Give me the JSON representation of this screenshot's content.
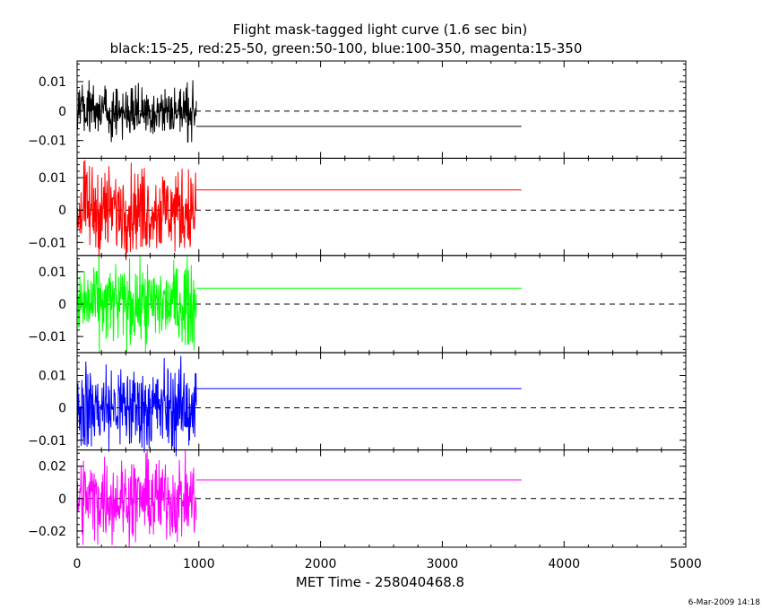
{
  "chart_data": {
    "type": "line",
    "title": "Flight mask-tagged light curve (1.6 sec bin)",
    "subtitle": "black:15-25, red:25-50, green:50-100, blue:100-350, magenta:15-350",
    "xlabel": "MET Time - 258040468.8",
    "xlim": [
      0,
      5000
    ],
    "x_ticks": [
      "0",
      "1000",
      "2000",
      "3000",
      "4000",
      "5000"
    ],
    "timestamp": "6-Mar-2009 14:18",
    "series": [
      {
        "color": "#000000",
        "ylim": [
          -0.016,
          0.017
        ],
        "y_tick_values": [
          -0.01,
          0,
          0.01
        ],
        "y_tick_labels": [
          "−0.01",
          "0",
          "0.01"
        ],
        "noise_x_range": [
          0,
          980
        ],
        "noise_amplitude": 0.0105,
        "mean_line": {
          "x": [
            980,
            3650
          ],
          "y": -0.0052
        }
      },
      {
        "color": "#ff0000",
        "ylim": [
          -0.014,
          0.016
        ],
        "y_tick_values": [
          -0.01,
          0,
          0.01
        ],
        "y_tick_labels": [
          "−0.01",
          "0",
          "0.01"
        ],
        "noise_x_range": [
          0,
          980
        ],
        "noise_amplitude": 0.0155,
        "mean_line": {
          "x": [
            980,
            3650
          ],
          "y": 0.0062
        }
      },
      {
        "color": "#00ff00",
        "ylim": [
          -0.015,
          0.015
        ],
        "y_tick_values": [
          -0.01,
          0,
          0.01
        ],
        "y_tick_labels": [
          "−0.01",
          "0",
          "0.01"
        ],
        "noise_x_range": [
          0,
          980
        ],
        "noise_amplitude": 0.0148,
        "mean_line": {
          "x": [
            980,
            3650
          ],
          "y": 0.0049
        }
      },
      {
        "color": "#0000ff",
        "ylim": [
          -0.013,
          0.017
        ],
        "y_tick_values": [
          -0.01,
          0,
          0.01
        ],
        "y_tick_labels": [
          "−0.01",
          "0",
          "0.01"
        ],
        "noise_x_range": [
          0,
          980
        ],
        "noise_amplitude": 0.016,
        "mean_line": {
          "x": [
            980,
            3650
          ],
          "y": 0.0059
        }
      },
      {
        "color": "#ff00ff",
        "ylim": [
          -0.03,
          0.03
        ],
        "y_tick_values": [
          -0.02,
          0,
          0.02
        ],
        "y_tick_labels": [
          "−0.02",
          "0",
          "0.02"
        ],
        "noise_x_range": [
          0,
          980
        ],
        "noise_amplitude": 0.03,
        "mean_line": {
          "x": [
            980,
            3650
          ],
          "y": 0.0115
        }
      }
    ]
  }
}
